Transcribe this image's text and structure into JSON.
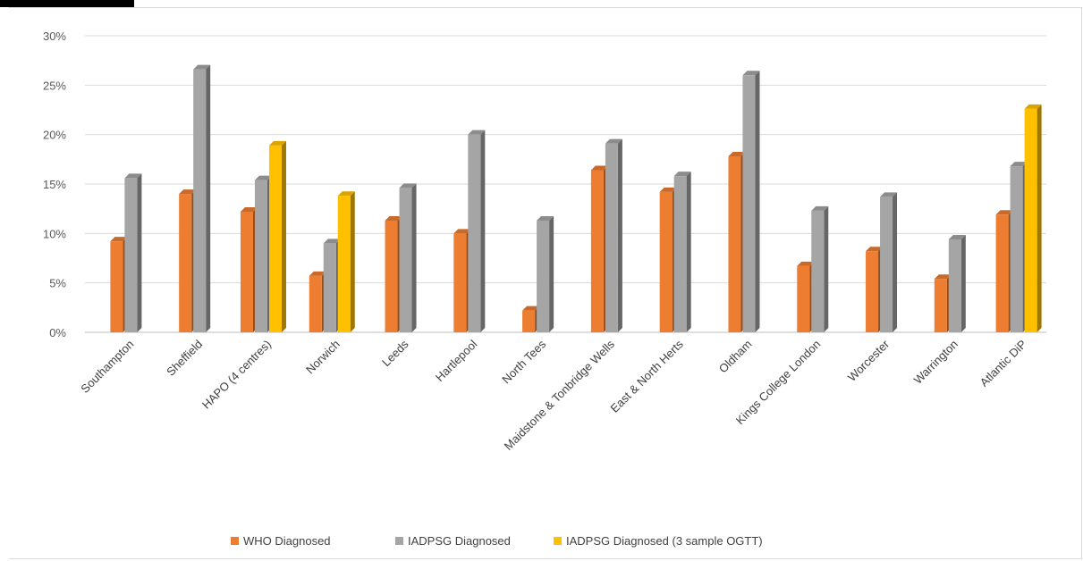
{
  "chart_data": {
    "type": "bar",
    "title": "",
    "xlabel": "",
    "ylabel": "",
    "ylim": [
      0,
      30
    ],
    "yticks": [
      "0%",
      "5%",
      "10%",
      "15%",
      "20%",
      "25%",
      "30%"
    ],
    "grid": true,
    "legend_position": "bottom",
    "categories": [
      "Southampton",
      "Sheffield",
      "HAPO (4 centres)",
      "Norwich",
      "Leeds",
      "Hartlepool",
      "North Tees",
      "Maidstone & Tonbridge Wells",
      "East & North Herts",
      "Oldham",
      "Kings College London",
      "Worcester",
      "Warrington",
      "Atlantic DiP"
    ],
    "series": [
      {
        "name": "WHO Diagnosed",
        "color": "#ed7d31",
        "values": [
          9.2,
          14.0,
          12.2,
          5.7,
          11.3,
          10.0,
          2.2,
          16.4,
          14.2,
          17.8,
          6.7,
          8.2,
          5.4,
          11.9
        ]
      },
      {
        "name": "IADPSG Diagnosed",
        "color": "#a5a5a5",
        "values": [
          15.6,
          26.6,
          15.4,
          9.0,
          14.6,
          20.0,
          11.3,
          19.1,
          15.8,
          26.0,
          12.3,
          13.7,
          9.4,
          16.8
        ]
      },
      {
        "name": "IADPSG Diagnosed (3 sample OGTT)",
        "color": "#ffc000",
        "values": [
          null,
          null,
          18.9,
          13.8,
          null,
          null,
          null,
          null,
          null,
          null,
          null,
          null,
          null,
          22.6
        ]
      }
    ]
  }
}
